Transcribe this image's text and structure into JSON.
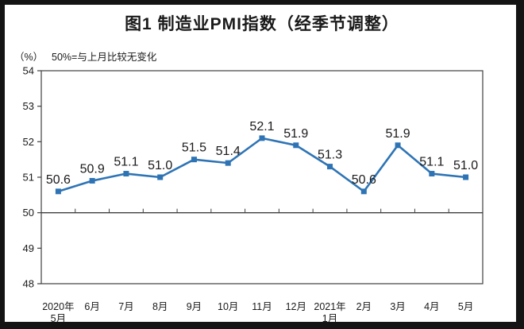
{
  "frame": {
    "border_color": "#141414",
    "background": "#ffffff"
  },
  "chart_data": {
    "type": "line",
    "title": "图1 制造业PMI指数（经季节调整）",
    "unit_label": "（%）",
    "note": "50%=与上月比较无变化",
    "categories": [
      "2020年5月",
      "6月",
      "7月",
      "8月",
      "9月",
      "10月",
      "11月",
      "12月",
      "2021年1月",
      "2月",
      "3月",
      "4月",
      "5月"
    ],
    "x_tick_lines": [
      [
        "2020年",
        "5月"
      ],
      [
        "6月"
      ],
      [
        "7月"
      ],
      [
        "8月"
      ],
      [
        "9月"
      ],
      [
        "10月"
      ],
      [
        "11月"
      ],
      [
        "12月"
      ],
      [
        "2021年",
        "1月"
      ],
      [
        "2月"
      ],
      [
        "3月"
      ],
      [
        "4月"
      ],
      [
        "5月"
      ]
    ],
    "series": [
      {
        "name": "制造业PMI指数",
        "values": [
          50.6,
          50.9,
          51.1,
          51.0,
          51.5,
          51.4,
          52.1,
          51.9,
          51.3,
          50.6,
          51.9,
          51.1,
          51.0
        ]
      }
    ],
    "data_labels": [
      "50.6",
      "50.9",
      "51.1",
      "51.0",
      "51.5",
      "51.4",
      "52.1",
      "51.9",
      "51.3",
      "50.6",
      "51.9",
      "51.1",
      "51.0"
    ],
    "ylim": [
      48,
      54
    ],
    "yticks": [
      48,
      49,
      50,
      51,
      52,
      53,
      54
    ],
    "reference_line": 50,
    "grid": false,
    "legend": "none",
    "line_color": "#2E74B5",
    "marker": "square",
    "marker_color": "#2E74B5",
    "axis_color": "#3f3f3f",
    "text_color": "#1a1a1a"
  }
}
